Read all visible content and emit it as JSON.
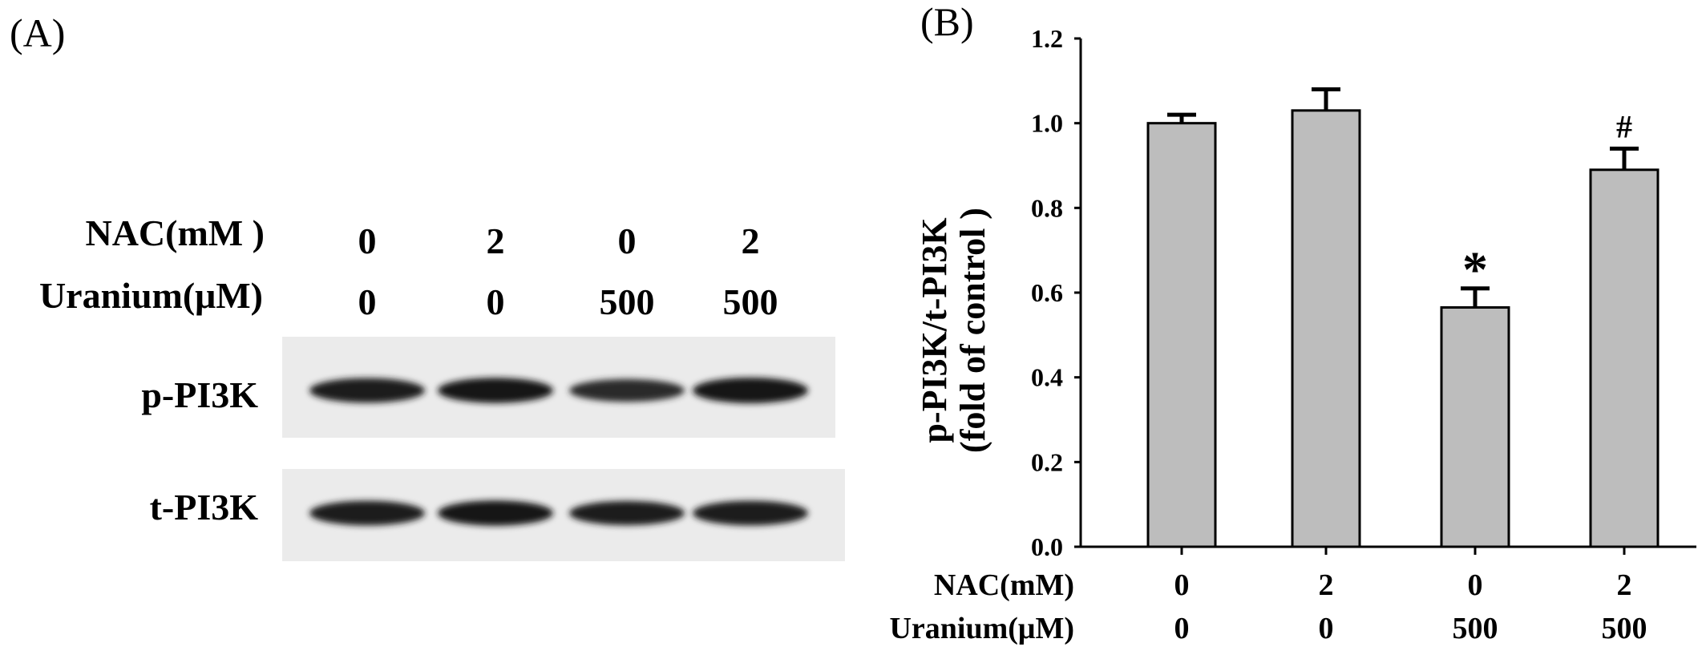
{
  "panel_a": {
    "letter": "(A)",
    "conditions": [
      {
        "label": "NAC(mM )",
        "values": [
          "0",
          "2",
          "0",
          "2"
        ]
      },
      {
        "label": "Uranium(μM)",
        "values": [
          "0",
          "0",
          "500",
          "500"
        ]
      }
    ],
    "blots": [
      {
        "label": "p-PI3K",
        "intensities": [
          0.9,
          0.95,
          0.7,
          1.0
        ]
      },
      {
        "label": "t-PI3K",
        "intensities": [
          0.9,
          0.95,
          0.85,
          0.9
        ]
      }
    ]
  },
  "panel_b": {
    "letter": "(B)"
  },
  "chart_data": {
    "type": "bar",
    "categories": [
      "NAC 0 / Uranium 0",
      "NAC 2 / Uranium 0",
      "NAC 0 / Uranium 500",
      "NAC 2 / Uranium 500"
    ],
    "x_condition_rows": [
      {
        "label": "NAC(mM)",
        "values": [
          "0",
          "2",
          "0",
          "2"
        ]
      },
      {
        "label": "Uranium(μM)",
        "values": [
          "0",
          "0",
          "500",
          "500"
        ]
      }
    ],
    "values": [
      1.0,
      1.03,
      0.565,
      0.89
    ],
    "errors": [
      0.02,
      0.05,
      0.045,
      0.05
    ],
    "annotations": [
      "",
      "",
      "*",
      "#"
    ],
    "ylabel_line1": "p-PI3K/t-PI3K",
    "ylabel_line2": "(fold of control )",
    "ylim": [
      0,
      1.2
    ],
    "yticks": [
      0.0,
      0.2,
      0.4,
      0.6,
      0.8,
      1.0,
      1.2
    ],
    "bar_color": "#bdbdbd",
    "grid": false,
    "legend": "none"
  }
}
